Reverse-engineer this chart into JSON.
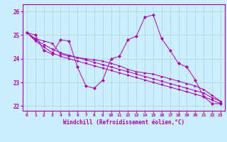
{
  "xlabel": "Windchill (Refroidissement éolien,°C)",
  "bg_color": "#cceeff",
  "line_color": "#aa00aa",
  "grid_color": "#aad4d4",
  "xlim": [
    -0.5,
    23.5
  ],
  "ylim": [
    21.8,
    26.3
  ],
  "yticks": [
    22,
    23,
    24,
    25,
    26
  ],
  "xticks": [
    0,
    1,
    2,
    3,
    4,
    5,
    6,
    7,
    8,
    9,
    10,
    11,
    12,
    13,
    14,
    15,
    16,
    17,
    18,
    19,
    20,
    21,
    22,
    23
  ],
  "series": [
    [
      25.1,
      25.0,
      24.35,
      24.2,
      24.8,
      24.75,
      23.65,
      22.85,
      22.75,
      23.1,
      24.0,
      24.1,
      24.8,
      24.95,
      25.75,
      25.85,
      24.85,
      24.35,
      23.8,
      23.65,
      23.1,
      22.4,
      22.1,
      22.1
    ],
    [
      25.1,
      24.85,
      24.75,
      24.65,
      24.2,
      24.1,
      24.05,
      24.0,
      23.95,
      23.9,
      23.8,
      23.7,
      23.55,
      23.45,
      23.4,
      23.35,
      23.25,
      23.15,
      23.05,
      22.95,
      22.85,
      22.7,
      22.45,
      22.2
    ],
    [
      25.1,
      24.8,
      24.6,
      24.4,
      24.25,
      24.15,
      24.05,
      23.95,
      23.85,
      23.75,
      23.65,
      23.55,
      23.45,
      23.35,
      23.25,
      23.15,
      23.05,
      22.95,
      22.85,
      22.75,
      22.65,
      22.55,
      22.35,
      22.2
    ],
    [
      25.1,
      24.75,
      24.5,
      24.25,
      24.1,
      24.0,
      23.9,
      23.8,
      23.7,
      23.6,
      23.5,
      23.4,
      23.3,
      23.2,
      23.1,
      23.0,
      22.9,
      22.8,
      22.7,
      22.6,
      22.5,
      22.4,
      22.25,
      22.1
    ]
  ]
}
